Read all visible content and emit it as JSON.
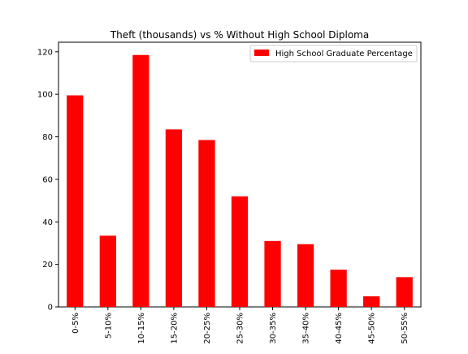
{
  "chart_data": {
    "type": "bar",
    "title": "Theft (thousands) vs % Without High School Diploma",
    "xlabel": "",
    "ylabel": "",
    "categories": [
      "0-5%",
      "5-10%",
      "10-15%",
      "15-20%",
      "20-25%",
      "25-30%",
      "30-35%",
      "35-40%",
      "40-45%",
      "45-50%",
      "50-55%"
    ],
    "series": [
      {
        "name": "High School Graduate Percentage",
        "color": "#ff0000",
        "values": [
          99.5,
          33.5,
          118.5,
          83.5,
          78.5,
          52,
          31,
          29.5,
          17.5,
          5,
          14
        ]
      }
    ],
    "ylim": [
      0,
      124.5
    ],
    "yticks": [
      0,
      20,
      40,
      60,
      80,
      100,
      120
    ],
    "legend_position": "top-right",
    "grid": false
  }
}
